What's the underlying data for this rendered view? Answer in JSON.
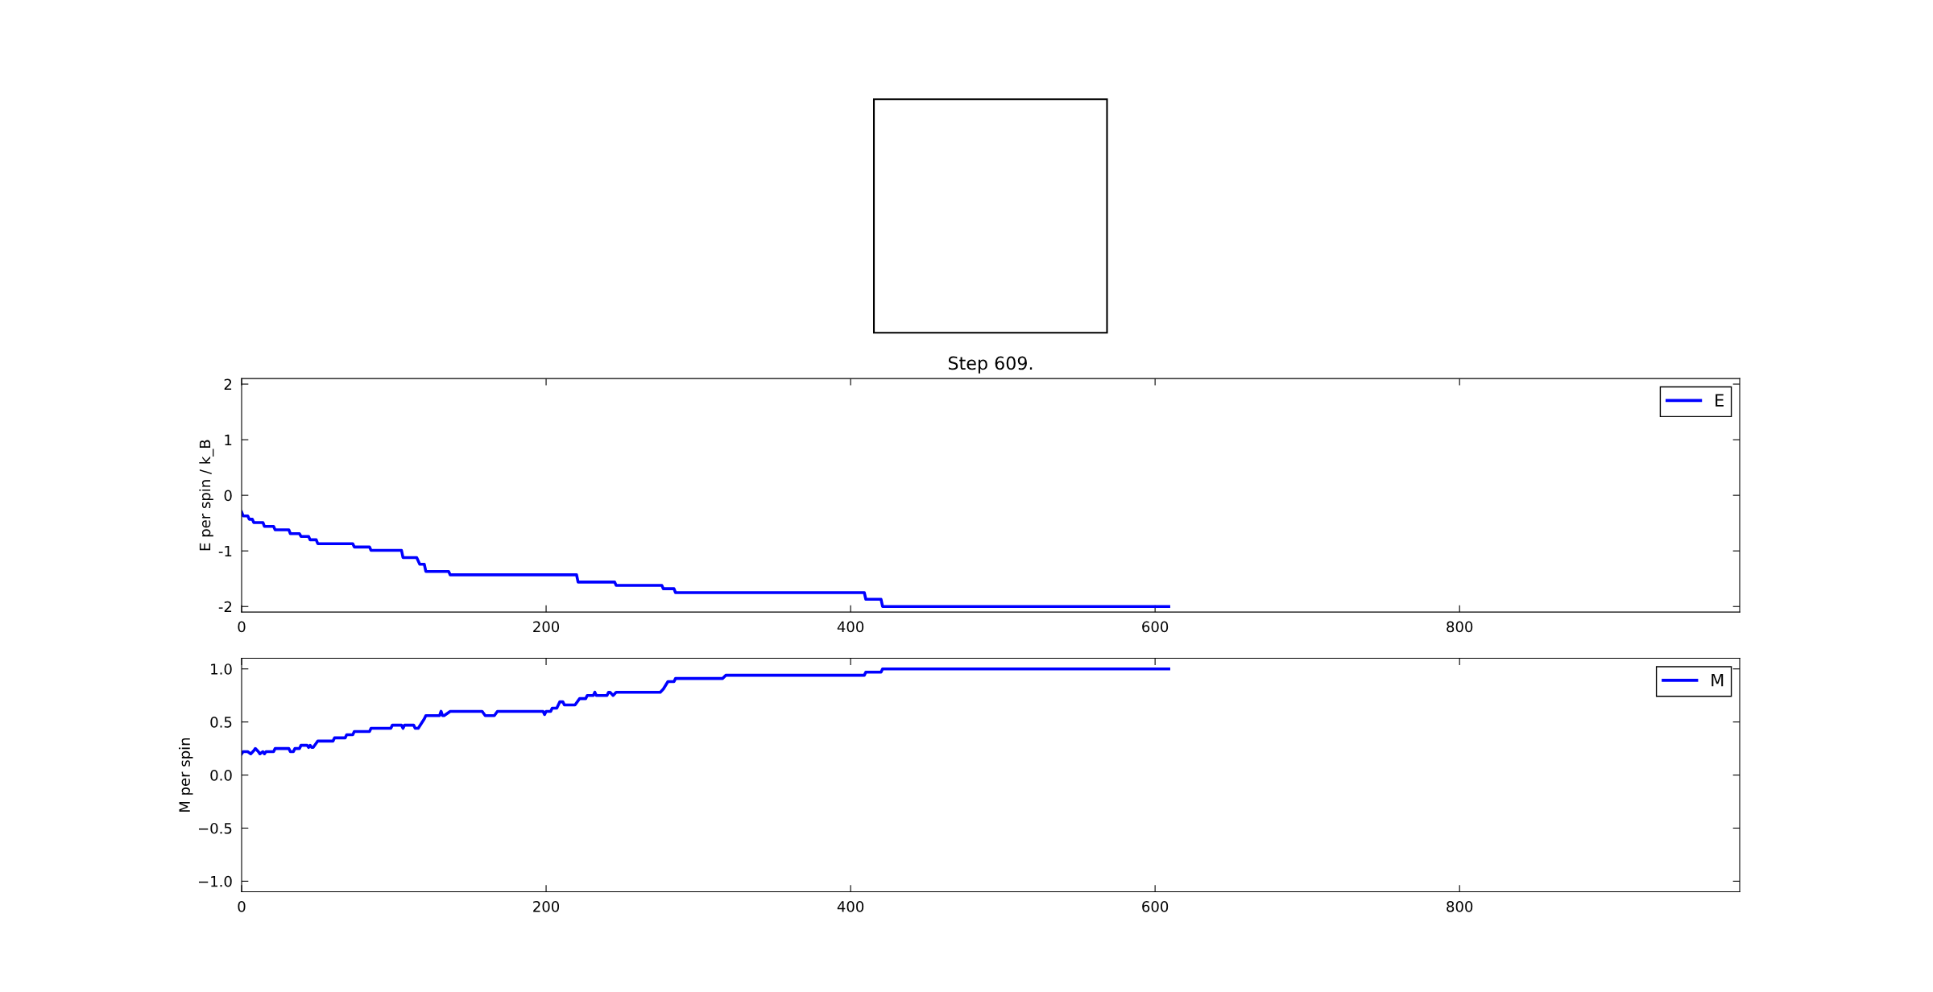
{
  "chart_data": [
    {
      "type": "line",
      "title": "Step 609.",
      "ylabel": "E per spin / k_B",
      "xlim": [
        0,
        984
      ],
      "xticks": [
        0,
        200,
        400,
        600,
        800
      ],
      "ylim": [
        -2.1,
        2.1
      ],
      "yticks": [
        -2,
        -1,
        0,
        1,
        2
      ],
      "legend": "top right",
      "series": [
        {
          "name": "E",
          "color": "#0000ff",
          "x": [
            0,
            1,
            4,
            5,
            7,
            8,
            14,
            15,
            21,
            22,
            31,
            32,
            38,
            39,
            44,
            45,
            49,
            50,
            73,
            74,
            84,
            85,
            105,
            106,
            115,
            117,
            120,
            121,
            136,
            137,
            220,
            221,
            245,
            246,
            276,
            277,
            284,
            285,
            409,
            410,
            420,
            421,
            609
          ],
          "values": [
            -0.3,
            -0.37,
            -0.37,
            -0.43,
            -0.43,
            -0.49,
            -0.49,
            -0.56,
            -0.56,
            -0.62,
            -0.62,
            -0.69,
            -0.69,
            -0.74,
            -0.74,
            -0.8,
            -0.8,
            -0.87,
            -0.87,
            -0.93,
            -0.93,
            -0.99,
            -0.99,
            -1.12,
            -1.12,
            -1.24,
            -1.24,
            -1.37,
            -1.37,
            -1.43,
            -1.43,
            -1.56,
            -1.56,
            -1.62,
            -1.62,
            -1.68,
            -1.68,
            -1.75,
            -1.75,
            -1.87,
            -1.87,
            -2.0,
            -2.0
          ]
        }
      ]
    },
    {
      "type": "line",
      "ylabel": "M per spin",
      "xlim": [
        0,
        984
      ],
      "xticks": [
        0,
        200,
        400,
        600,
        800
      ],
      "ylim": [
        -1.1,
        1.1
      ],
      "yticks": [
        {
          "value": -1.0,
          "label": "−1.0"
        },
        {
          "value": -0.5,
          "label": "−0.5"
        },
        {
          "value": 0.0,
          "label": "0.0"
        },
        {
          "value": 0.5,
          "label": "0.5"
        },
        {
          "value": 1.0,
          "label": "1.0"
        }
      ],
      "legend": "top right",
      "series": [
        {
          "name": "M",
          "color": "#0000ff",
          "x": [
            0,
            1,
            4,
            6,
            8,
            9,
            11,
            12,
            14,
            15,
            16,
            21,
            22,
            31,
            32,
            34,
            35,
            38,
            39,
            43,
            44,
            45,
            46,
            47,
            49,
            50,
            60,
            61,
            68,
            69,
            73,
            74,
            84,
            85,
            98,
            99,
            105,
            106,
            107,
            113,
            114,
            116,
            120,
            121,
            130,
            131,
            132,
            133,
            137,
            158,
            160,
            166,
            168,
            198,
            199,
            200,
            203,
            204,
            207,
            209,
            211,
            212,
            219,
            222,
            226,
            227,
            231,
            232,
            233,
            240,
            241,
            242,
            244,
            246,
            275,
            277,
            280,
            284,
            285,
            316,
            318,
            409,
            410,
            420,
            421,
            609
          ],
          "values": [
            0.2,
            0.22,
            0.22,
            0.2,
            0.23,
            0.25,
            0.22,
            0.2,
            0.22,
            0.2,
            0.22,
            0.22,
            0.25,
            0.25,
            0.22,
            0.22,
            0.25,
            0.25,
            0.28,
            0.28,
            0.26,
            0.28,
            0.26,
            0.26,
            0.3,
            0.32,
            0.32,
            0.35,
            0.35,
            0.38,
            0.38,
            0.41,
            0.41,
            0.44,
            0.44,
            0.47,
            0.47,
            0.44,
            0.47,
            0.47,
            0.44,
            0.44,
            0.53,
            0.56,
            0.56,
            0.6,
            0.56,
            0.56,
            0.6,
            0.6,
            0.56,
            0.56,
            0.6,
            0.6,
            0.57,
            0.6,
            0.6,
            0.63,
            0.63,
            0.69,
            0.69,
            0.66,
            0.66,
            0.72,
            0.72,
            0.75,
            0.75,
            0.78,
            0.75,
            0.75,
            0.78,
            0.78,
            0.75,
            0.78,
            0.78,
            0.81,
            0.88,
            0.88,
            0.91,
            0.91,
            0.94,
            0.94,
            0.97,
            0.97,
            1.0,
            1.0
          ]
        }
      ]
    }
  ]
}
